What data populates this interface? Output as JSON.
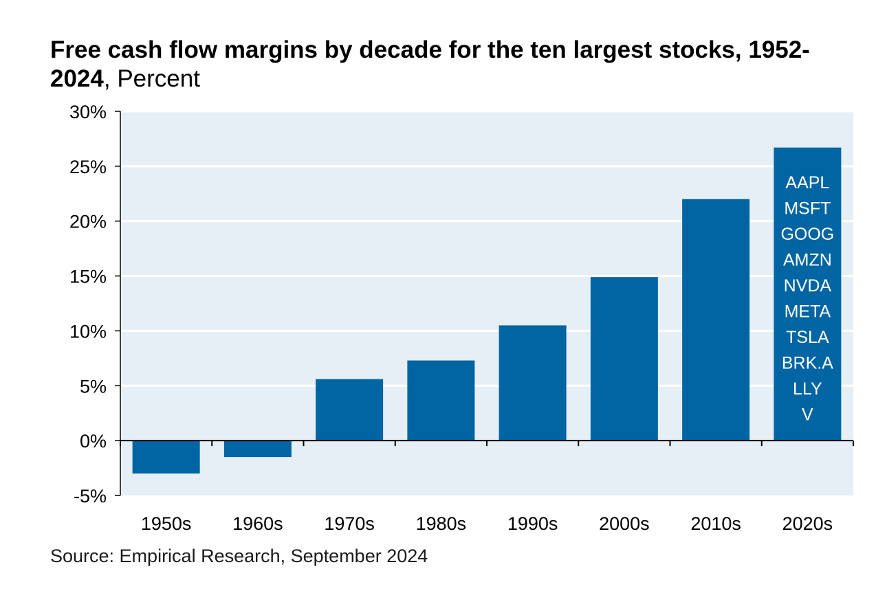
{
  "title": {
    "main": "Free cash flow margins by decade for the ten largest stocks, 1952-2024",
    "unit": ", Percent"
  },
  "source": "Source: Empirical Research, September 2024",
  "colors": {
    "bar": "#0065a2",
    "plot_background": "#e6eff5",
    "gridline": "#ffffff",
    "axis": "#000000",
    "label_in_bar": "#ffffff"
  },
  "chart_data": {
    "type": "bar",
    "title": "Free cash flow margins by decade for the ten largest stocks, 1952-2024, Percent",
    "xlabel": "",
    "ylabel": "",
    "categories": [
      "1950s",
      "1960s",
      "1970s",
      "1980s",
      "1990s",
      "2000s",
      "2010s",
      "2020s"
    ],
    "values": [
      -3.0,
      -1.5,
      5.6,
      7.3,
      10.5,
      14.9,
      22.0,
      26.7
    ],
    "ylim": [
      -5,
      30
    ],
    "yticks": [
      -5,
      0,
      5,
      10,
      15,
      20,
      25,
      30
    ],
    "ytick_labels": [
      "-5%",
      "0%",
      "5%",
      "10%",
      "15%",
      "20%",
      "25%",
      "30%"
    ],
    "grid": true,
    "legend": "none",
    "annotations": [
      {
        "category": "2020s",
        "placement": "inside bar",
        "lines": [
          "AAPL",
          "MSFT",
          "GOOG",
          "AMZN",
          "NVDA",
          "META",
          "TSLA",
          "BRK.A",
          "LLY",
          "V"
        ]
      }
    ]
  }
}
